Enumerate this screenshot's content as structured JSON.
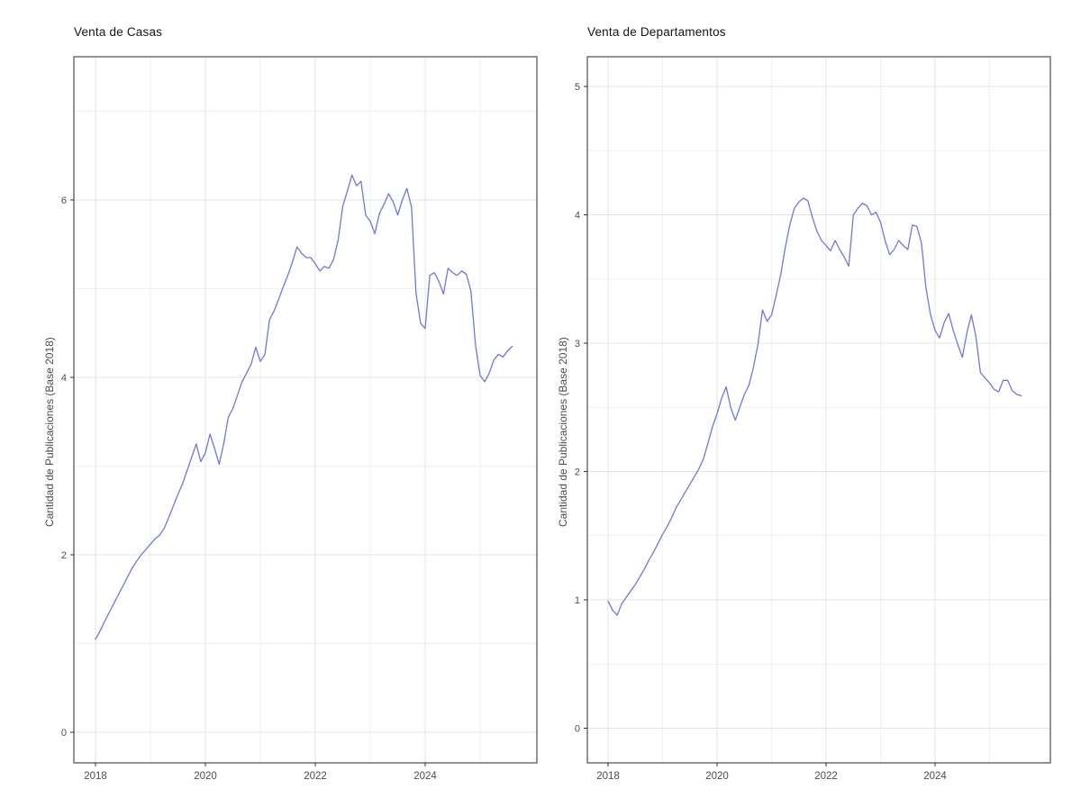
{
  "page": {
    "background": "#ffffff"
  },
  "chart_data": [
    {
      "type": "line",
      "title": "Venta de Casas",
      "xlabel": "",
      "ylabel": "Cantidad de Publicaciones (Base 2018)",
      "x_start": "2018-01",
      "frequency": "monthly",
      "x_tick_labels": [
        "2018",
        "2020",
        "2022",
        "2024"
      ],
      "x_tick_years": [
        2018,
        2020,
        2022,
        2024
      ],
      "x_minor_years": [
        2019,
        2021,
        2023,
        2025
      ],
      "y_tick_labels": [
        "0",
        "2",
        "4",
        "6"
      ],
      "y_ticks": [
        0,
        2,
        4,
        6
      ],
      "y_minor_ticks": [
        1,
        3,
        5,
        7
      ],
      "ylim_panel": [
        -0.35,
        7.6
      ],
      "grid": true,
      "legend": "none",
      "line_color": "#7175e3",
      "values": [
        1.05,
        1.14,
        1.25,
        1.35,
        1.45,
        1.55,
        1.65,
        1.75,
        1.85,
        1.93,
        2.0,
        2.06,
        2.12,
        2.18,
        2.22,
        2.3,
        2.42,
        2.55,
        2.68,
        2.8,
        2.95,
        3.1,
        3.25,
        3.05,
        3.15,
        3.36,
        3.2,
        3.02,
        3.25,
        3.55,
        3.65,
        3.8,
        3.95,
        4.05,
        4.15,
        4.34,
        4.18,
        4.26,
        4.65,
        4.75,
        4.88,
        5.02,
        5.15,
        5.3,
        5.47,
        5.4,
        5.35,
        5.35,
        5.28,
        5.2,
        5.25,
        5.23,
        5.33,
        5.55,
        5.93,
        6.1,
        6.28,
        6.16,
        6.21,
        5.83,
        5.76,
        5.62,
        5.85,
        5.95,
        6.07,
        5.98,
        5.83,
        6.0,
        6.13,
        5.92,
        4.95,
        4.61,
        4.55,
        5.15,
        5.18,
        5.08,
        4.94,
        5.23,
        5.18,
        5.15,
        5.2,
        5.16,
        4.97,
        4.36,
        4.02,
        3.95,
        4.05,
        4.2,
        4.26,
        4.23,
        4.3,
        4.35
      ]
    },
    {
      "type": "line",
      "title": "Venta de Departamentos",
      "xlabel": "",
      "ylabel": "Cantidad de Publicaciones (Base 2018)",
      "x_start": "2018-01",
      "frequency": "monthly",
      "x_tick_labels": [
        "2018",
        "2020",
        "2022",
        "2024"
      ],
      "x_tick_years": [
        2018,
        2020,
        2022,
        2024
      ],
      "x_minor_years": [
        2019,
        2021,
        2023,
        2025
      ],
      "y_tick_labels": [
        "0",
        "1",
        "2",
        "3",
        "4",
        "5"
      ],
      "y_ticks": [
        0,
        1,
        2,
        3,
        4,
        5
      ],
      "y_minor_ticks": [
        0.5,
        1.5,
        2.5,
        3.5,
        4.5
      ],
      "ylim_panel": [
        -0.27,
        5.23
      ],
      "grid": true,
      "legend": "none",
      "line_color": "#7175e3",
      "values": [
        0.99,
        0.92,
        0.88,
        0.97,
        1.02,
        1.07,
        1.12,
        1.18,
        1.24,
        1.31,
        1.37,
        1.44,
        1.51,
        1.57,
        1.64,
        1.72,
        1.78,
        1.84,
        1.9,
        1.96,
        2.02,
        2.1,
        2.22,
        2.35,
        2.45,
        2.57,
        2.66,
        2.5,
        2.4,
        2.5,
        2.6,
        2.67,
        2.81,
        2.99,
        3.26,
        3.17,
        3.22,
        3.37,
        3.53,
        3.74,
        3.92,
        4.05,
        4.1,
        4.13,
        4.11,
        3.98,
        3.87,
        3.8,
        3.76,
        3.72,
        3.8,
        3.73,
        3.67,
        3.6,
        4.0,
        4.05,
        4.09,
        4.07,
        4.0,
        4.02,
        3.94,
        3.8,
        3.69,
        3.73,
        3.8,
        3.76,
        3.73,
        3.92,
        3.91,
        3.78,
        3.43,
        3.22,
        3.1,
        3.04,
        3.16,
        3.23,
        3.1,
        2.99,
        2.89,
        3.08,
        3.22,
        3.05,
        2.77,
        2.73,
        2.69,
        2.64,
        2.62,
        2.71,
        2.71,
        2.63,
        2.6,
        2.59
      ]
    }
  ],
  "theme": {
    "panel_border_color": "#595959",
    "grid_major_color": "#e4e4e4",
    "grid_minor_color": "#f1f1f1",
    "tick_color": "#333333",
    "tick_label_color": "#4d4d4d",
    "title_color": "#141414"
  }
}
